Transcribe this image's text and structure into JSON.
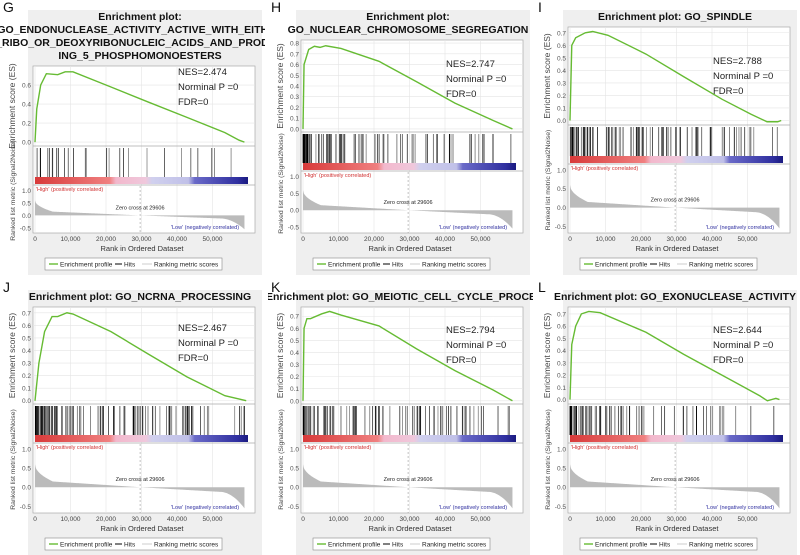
{
  "common": {
    "es_ylabel": "Enrichment score (ES)",
    "rank_ylabel": "Ranked list metric (Signal2Noise)",
    "xlabel": "Rank in Ordered Dataset",
    "x_ticks": [
      "0",
      "10,000",
      "20,000",
      "30,000",
      "40,000",
      "50,000"
    ],
    "x_tick_values": [
      0,
      10000,
      20000,
      30000,
      40000,
      50000
    ],
    "rank_ticks": [
      "1.0",
      "0.5",
      "0.0",
      "-0.5"
    ],
    "rank_tick_values": [
      1.0,
      0.5,
      0.0,
      -0.5
    ],
    "high_label": "'High' (positively correlated)",
    "low_label": "'Low' (negatively correlated)",
    "zero_cross_label": "Zero cross at 29606",
    "zero_cross": 29606,
    "legend": [
      "Enrichment profile",
      "Hits",
      "Ranking metric scores"
    ],
    "colors": {
      "es": "#66bb33",
      "hits": "#000000",
      "metric": "#bbbbbb",
      "high": "#d03030",
      "low": "#3030a0"
    }
  },
  "chart_data": [
    {
      "type": "line",
      "letter": "G",
      "title_lines": [
        "Enrichment plot:",
        "GO_ENDONUCLEASE_ACTIVITY_ACTIVE_WITH_EITHER",
        "_RIBO_OR_DEOXYRIBONUCLEIC_ACIDS_AND_PRODUC",
        "ING_5_PHOSPHOMONOESTERS"
      ],
      "nes": "NES=2.474",
      "p": "Norminal P =0",
      "fdr": "FDR=0",
      "ylim": [
        -0.02,
        0.78
      ],
      "y_ticks": [
        "0.0",
        "0.2",
        "0.4",
        "0.6"
      ],
      "y_tick_values": [
        0,
        0.2,
        0.4,
        0.6
      ],
      "es": [
        [
          0,
          0
        ],
        [
          500,
          0.35
        ],
        [
          1600,
          0.6
        ],
        [
          3200,
          0.72
        ],
        [
          6400,
          0.71
        ],
        [
          8500,
          0.74
        ],
        [
          10700,
          0.74
        ],
        [
          21400,
          0.58
        ],
        [
          32000,
          0.42
        ],
        [
          42800,
          0.26
        ],
        [
          53500,
          0.1
        ],
        [
          57500,
          0.02
        ],
        [
          59000,
          0.0
        ]
      ],
      "hit_count": 28,
      "hit_skew": 1.4
    },
    {
      "type": "line",
      "letter": "H",
      "title_lines": [
        "Enrichment plot:",
        "GO_NUCLEAR_CHROMOSOME_SEGREGATION"
      ],
      "nes": "NES=2.747",
      "p": "Norminal P =0",
      "fdr": "FDR=0",
      "ylim": [
        -0.01,
        0.81
      ],
      "y_ticks": [
        "0.0",
        "0.1",
        "0.2",
        "0.3",
        "0.4",
        "0.5",
        "0.6",
        "0.7",
        "0.8"
      ],
      "y_tick_values": [
        0,
        0.1,
        0.2,
        0.3,
        0.4,
        0.5,
        0.6,
        0.7,
        0.8
      ],
      "es": [
        [
          0,
          0
        ],
        [
          300,
          0.6
        ],
        [
          1600,
          0.74
        ],
        [
          3200,
          0.77
        ],
        [
          4800,
          0.76
        ],
        [
          6400,
          0.775
        ],
        [
          10700,
          0.75
        ],
        [
          21400,
          0.63
        ],
        [
          32000,
          0.44
        ],
        [
          42800,
          0.24
        ],
        [
          53500,
          0.08
        ],
        [
          59000,
          0
        ]
      ],
      "hit_count": 85,
      "hit_skew": 2.0
    },
    {
      "type": "line",
      "letter": "I",
      "title_lines": [
        "Enrichment plot: GO_SPINDLE"
      ],
      "nes": "NES=2.788",
      "p": "Norminal P =0",
      "fdr": "FDR=0",
      "ylim": [
        -0.02,
        0.73
      ],
      "y_ticks": [
        "0.0",
        "0.1",
        "0.2",
        "0.3",
        "0.4",
        "0.5",
        "0.6",
        "0.7"
      ],
      "y_tick_values": [
        0,
        0.1,
        0.2,
        0.3,
        0.4,
        0.5,
        0.6,
        0.7
      ],
      "es": [
        [
          0,
          0
        ],
        [
          500,
          0.6
        ],
        [
          1600,
          0.66
        ],
        [
          4300,
          0.7
        ],
        [
          6400,
          0.71
        ],
        [
          10700,
          0.68
        ],
        [
          21400,
          0.53
        ],
        [
          32000,
          0.35
        ],
        [
          42800,
          0.17
        ],
        [
          51000,
          0.05
        ],
        [
          55500,
          -0.01
        ],
        [
          58500,
          -0.01
        ],
        [
          59500,
          0.0
        ]
      ],
      "hit_count": 95,
      "hit_skew": 1.8
    },
    {
      "type": "line",
      "letter": "J",
      "title_lines": [
        "Enrichment plot: GO_NCRNA_PROCESSING"
      ],
      "nes": "NES=2.467",
      "p": "Norminal P =0",
      "fdr": "FDR=0",
      "ylim": [
        -0.01,
        0.73
      ],
      "y_ticks": [
        "0.0",
        "0.1",
        "0.2",
        "0.3",
        "0.4",
        "0.5",
        "0.6",
        "0.7"
      ],
      "y_tick_values": [
        0,
        0.1,
        0.2,
        0.3,
        0.4,
        0.5,
        0.6,
        0.7
      ],
      "es": [
        [
          0,
          0
        ],
        [
          1100,
          0.3
        ],
        [
          2700,
          0.55
        ],
        [
          4800,
          0.67
        ],
        [
          6400,
          0.67
        ],
        [
          9000,
          0.7
        ],
        [
          10700,
          0.69
        ],
        [
          21400,
          0.55
        ],
        [
          32000,
          0.37
        ],
        [
          42800,
          0.19
        ],
        [
          53500,
          0.04
        ],
        [
          58000,
          0.01
        ],
        [
          59500,
          0
        ]
      ],
      "hit_count": 110,
      "hit_skew": 1.9
    },
    {
      "type": "line",
      "letter": "K",
      "title_lines": [
        "Enrichment plot: GO_MEIOTIC_CELL_CYCLE_PROCESS"
      ],
      "nes": "NES=2.794",
      "p": "Norminal P =0",
      "fdr": "FDR=0",
      "ylim": [
        -0.01,
        0.76
      ],
      "y_ticks": [
        "0.0",
        "0.1",
        "0.2",
        "0.3",
        "0.4",
        "0.5",
        "0.6",
        "0.7"
      ],
      "y_tick_values": [
        0,
        0.1,
        0.2,
        0.3,
        0.4,
        0.5,
        0.6,
        0.7
      ],
      "es": [
        [
          0,
          0
        ],
        [
          300,
          0.6
        ],
        [
          1100,
          0.68
        ],
        [
          2100,
          0.68
        ],
        [
          5300,
          0.72
        ],
        [
          7500,
          0.74
        ],
        [
          10700,
          0.71
        ],
        [
          21400,
          0.62
        ],
        [
          32000,
          0.43
        ],
        [
          42800,
          0.25
        ],
        [
          53500,
          0.09
        ],
        [
          59000,
          0
        ]
      ],
      "hit_count": 85,
      "hit_skew": 2.0
    },
    {
      "type": "line",
      "letter": "L",
      "title_lines": [
        "Enrichment plot: GO_EXONUCLEASE_ACTIVITY"
      ],
      "nes": "NES=2.644",
      "p": "Norminal P =0",
      "fdr": "FDR=0",
      "ylim": [
        -0.02,
        0.74
      ],
      "y_ticks": [
        "0.0",
        "0.1",
        "0.2",
        "0.3",
        "0.4",
        "0.5",
        "0.6",
        "0.7"
      ],
      "y_tick_values": [
        0,
        0.1,
        0.2,
        0.3,
        0.4,
        0.5,
        0.6,
        0.7
      ],
      "es": [
        [
          0,
          0
        ],
        [
          500,
          0.45
        ],
        [
          1600,
          0.6
        ],
        [
          3200,
          0.7
        ],
        [
          5300,
          0.72
        ],
        [
          8500,
          0.71
        ],
        [
          21400,
          0.55
        ],
        [
          32000,
          0.37
        ],
        [
          42800,
          0.2
        ],
        [
          53500,
          0.03
        ],
        [
          55600,
          -0.01
        ],
        [
          58000,
          0.01
        ],
        [
          59000,
          0.0
        ]
      ],
      "hit_count": 75,
      "hit_skew": 2.1
    }
  ]
}
